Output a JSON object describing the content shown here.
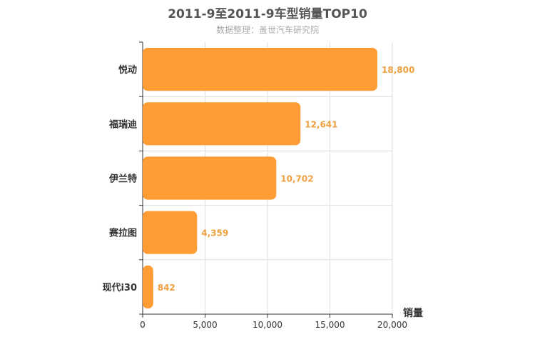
{
  "chart_data": {
    "type": "bar",
    "orientation": "horizontal",
    "title": "2011-9至2011-9车型销量TOP10",
    "subtitle": "数据整理：盖世汽车研究院",
    "categories": [
      "悦动",
      "福瑞迪",
      "伊兰特",
      "赛拉图",
      "现代i30"
    ],
    "values": [
      18800,
      12641,
      10702,
      4359,
      842
    ],
    "value_labels": [
      "18,800",
      "12,641",
      "10,702",
      "4,359",
      "842"
    ],
    "xlabel": "销量",
    "xlim": [
      0,
      20000
    ],
    "x_ticks": [
      0,
      5000,
      10000,
      15000,
      20000
    ],
    "x_tick_labels": [
      "0",
      "5,000",
      "10,000",
      "15,000",
      "20,000"
    ],
    "grid": true,
    "bar_color": "#ff9c33",
    "label_color": "#f0a040"
  }
}
